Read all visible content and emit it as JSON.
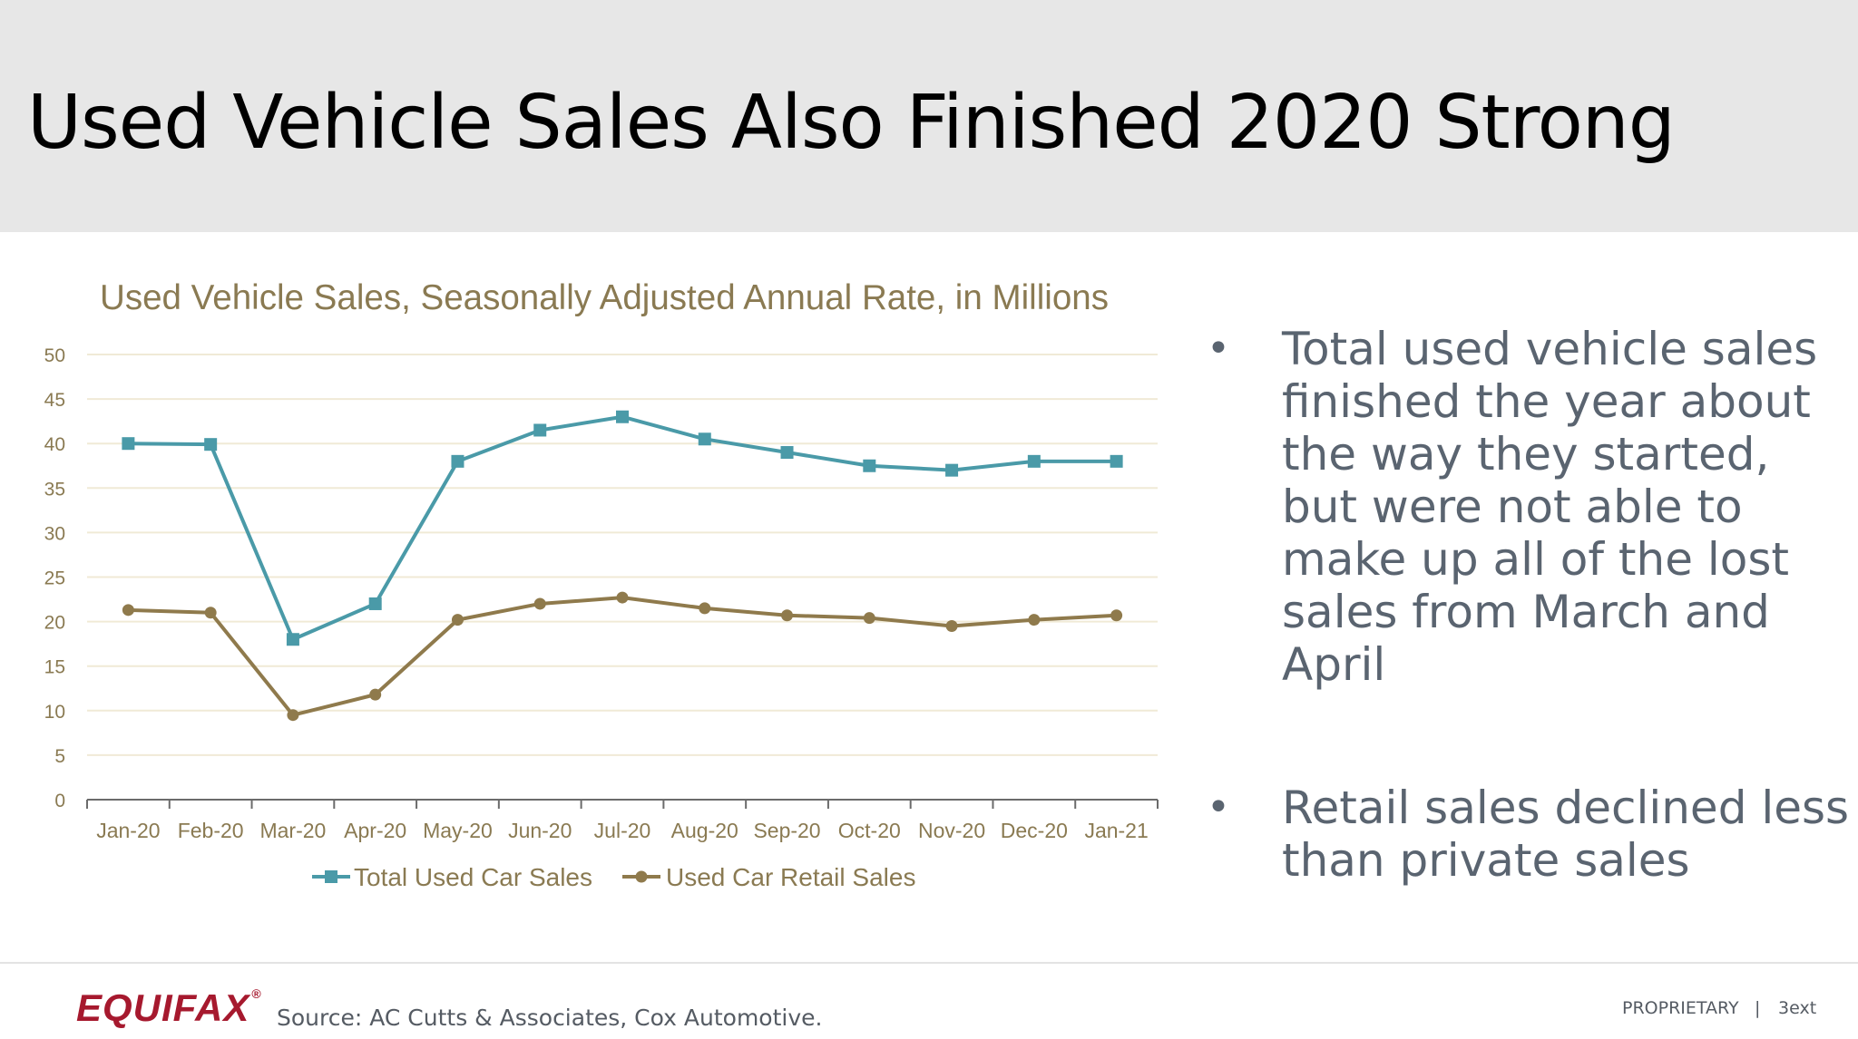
{
  "slide": {
    "title": "Used Vehicle Sales Also Finished 2020 Strong"
  },
  "bullets": [
    {
      "text": "Total used vehicle sales finished the year about the way they started, but were not able to make up all of the lost sales from March and April"
    },
    {
      "text": "Retail sales declined less than private sales"
    }
  ],
  "footer": {
    "logo_text": "EQUIFAX",
    "source": "Source: AC Cutts & Associates, Cox Automotive.",
    "proprietary": "PROPRIETARY",
    "divider": "|",
    "page_number": "3ext"
  },
  "colors": {
    "total_series": "#4a9aa8",
    "retail_series": "#8f7a4c",
    "axis_text": "#8a7a52",
    "title_text": "#8a7a52",
    "grid": "#f0ead6",
    "logo": "#a6192e"
  },
  "chart_data": {
    "type": "line",
    "title": "Used Vehicle Sales, Seasonally Adjusted Annual Rate, in Millions",
    "categories": [
      "Jan-20",
      "Feb-20",
      "Mar-20",
      "Apr-20",
      "May-20",
      "Jun-20",
      "Jul-20",
      "Aug-20",
      "Sep-20",
      "Oct-20",
      "Nov-20",
      "Dec-20",
      "Jan-21"
    ],
    "series": [
      {
        "name": "Total Used Car Sales",
        "marker": "square",
        "values": [
          40.0,
          39.9,
          18.0,
          22.0,
          38.0,
          41.5,
          43.0,
          40.5,
          39.0,
          37.5,
          37.0,
          38.0,
          38.0
        ]
      },
      {
        "name": "Used Car Retail Sales",
        "marker": "circle",
        "values": [
          21.3,
          21.0,
          9.5,
          11.8,
          20.2,
          22.0,
          22.7,
          21.5,
          20.7,
          20.4,
          19.5,
          20.2,
          20.7
        ]
      }
    ],
    "yticks": [
      0,
      5,
      10,
      15,
      20,
      25,
      30,
      35,
      40,
      45,
      50
    ],
    "ylim": [
      0,
      50
    ],
    "grid": true,
    "legend_position": "bottom"
  }
}
